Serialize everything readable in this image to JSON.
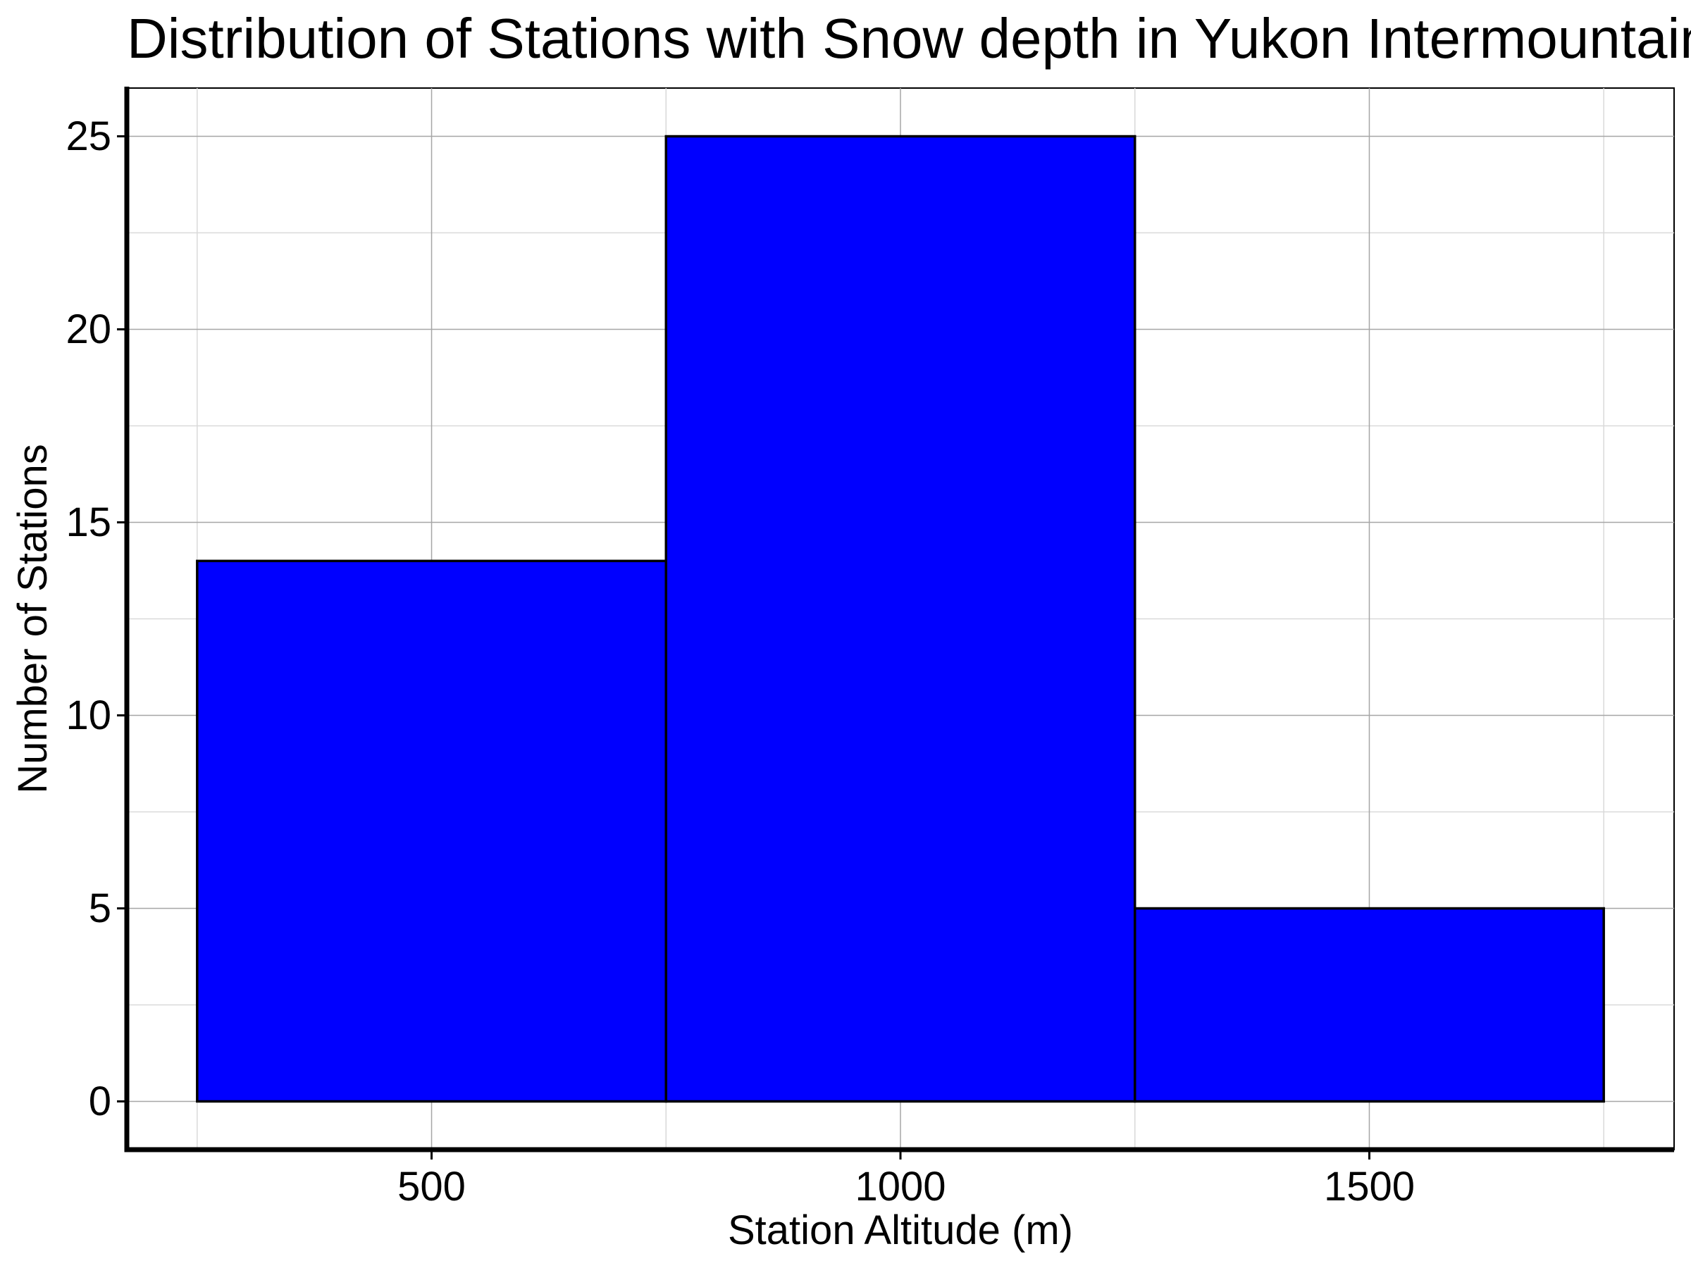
{
  "chart_data": {
    "type": "bar",
    "title": "Distribution of Stations with Snow depth in Yukon Intermountain",
    "xlabel": "Station Altitude (m)",
    "ylabel": "Number of Stations",
    "bins": [
      {
        "x0": 250,
        "x1": 750,
        "count": 14
      },
      {
        "x0": 750,
        "x1": 1250,
        "count": 25
      },
      {
        "x0": 1250,
        "x1": 1750,
        "count": 5
      }
    ],
    "xlim": [
      175,
      1825
    ],
    "ylim": [
      -1.25,
      26.25
    ],
    "x_ticks": [
      500,
      1000,
      1500
    ],
    "x_minor_gridlines": [
      250,
      750,
      1250,
      1750
    ],
    "y_ticks": [
      0,
      5,
      10,
      15,
      20,
      25
    ],
    "y_minor_gridlines": [
      2.5,
      7.5,
      12.5,
      17.5,
      22.5
    ],
    "grid": true,
    "bar_color": "#0000ff",
    "bar_edge_color": "#000000"
  }
}
